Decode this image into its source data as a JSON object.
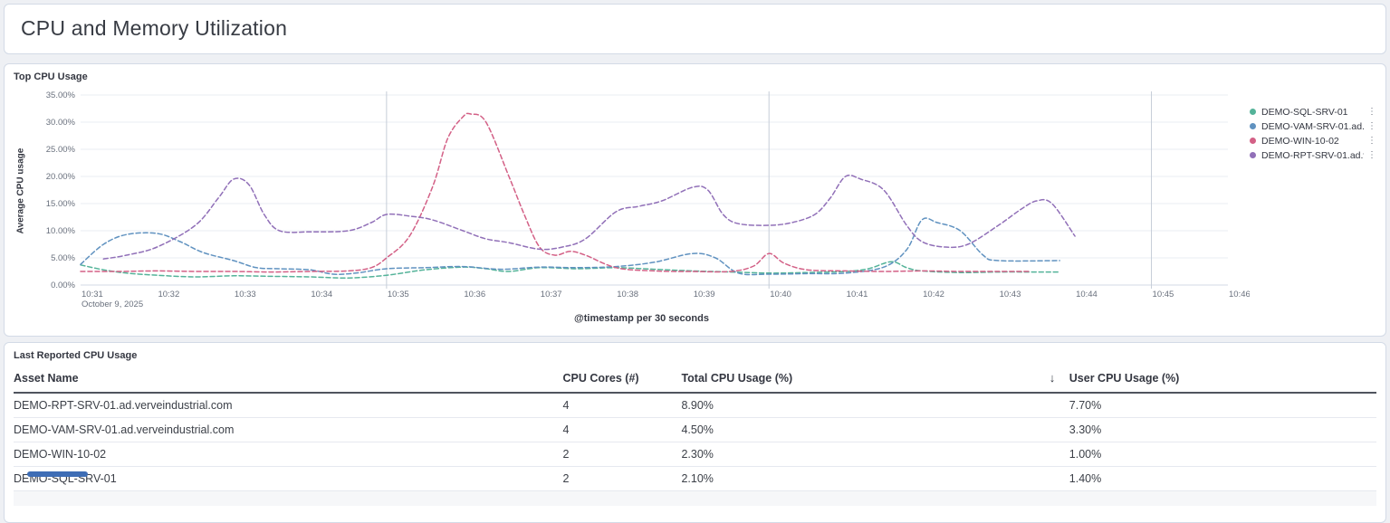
{
  "page": {
    "title": "CPU and Memory Utilization"
  },
  "colors": {
    "series_teal": "#54B399",
    "series_blue": "#6092C0",
    "series_pink": "#D36086",
    "series_purple": "#9170B8",
    "gridline": "#e9edf3",
    "vertical_gridline": "#c6cdd8",
    "axis_line": "#d3dae6",
    "tick_text": "#69707d",
    "scrollbar_thumb": "#3e6db5"
  },
  "chart_panel": {
    "title": "Top CPU Usage",
    "legend": [
      {
        "label": "DEMO-SQL-SRV-01",
        "color": "#54B399",
        "menu_icon": "kebab-menu"
      },
      {
        "label": "DEMO-VAM-SRV-01.ad...",
        "color": "#6092C0",
        "menu_icon": "kebab-menu"
      },
      {
        "label": "DEMO-WIN-10-02",
        "color": "#D36086",
        "menu_icon": "kebab-menu"
      },
      {
        "label": "DEMO-RPT-SRV-01.ad.v...",
        "color": "#9170B8",
        "menu_icon": "kebab-menu"
      }
    ]
  },
  "chart_data": {
    "type": "line",
    "title": "Top CPU Usage",
    "xlabel": "@timestamp per 30 seconds",
    "ylabel": "Average CPU usage",
    "x_ticks": [
      "10:31",
      "10:32",
      "10:33",
      "10:34",
      "10:35",
      "10:36",
      "10:37",
      "10:38",
      "10:39",
      "10:40",
      "10:41",
      "10:42",
      "10:43",
      "10:44",
      "10:45",
      "10:46"
    ],
    "x_date_label": "October 9, 2025",
    "y_ticks": [
      "0.00%",
      "5.00%",
      "10.00%",
      "15.00%",
      "20.00%",
      "25.00%",
      "30.00%",
      "35.00%"
    ],
    "ylim": [
      0,
      35
    ],
    "x_range_minutes": [
      0,
      15
    ],
    "vertical_gridlines_at_minutes": [
      4,
      9,
      14
    ],
    "grid": true,
    "legend_position": "right",
    "line_style": "dashed (dotted partial-data styling)",
    "series": [
      {
        "name": "DEMO-SQL-SRV-01",
        "color": "#54B399",
        "points": [
          [
            0,
            3.7
          ],
          [
            0.3,
            2.8
          ],
          [
            0.6,
            2.2
          ],
          [
            1,
            1.8
          ],
          [
            1.5,
            1.5
          ],
          [
            2,
            1.7
          ],
          [
            2.5,
            1.6
          ],
          [
            3,
            1.5
          ],
          [
            3.5,
            1.3
          ],
          [
            4,
            1.8
          ],
          [
            4.5,
            2.8
          ],
          [
            5,
            3.3
          ],
          [
            5.3,
            3.0
          ],
          [
            5.6,
            2.5
          ],
          [
            6,
            3.2
          ],
          [
            6.5,
            3.0
          ],
          [
            7,
            3.2
          ],
          [
            7.5,
            2.9
          ],
          [
            8,
            2.6
          ],
          [
            8.5,
            2.4
          ],
          [
            9,
            2.2
          ],
          [
            9.5,
            2.3
          ],
          [
            10,
            2.5
          ],
          [
            10.3,
            3.0
          ],
          [
            10.6,
            4.3
          ],
          [
            10.8,
            3.2
          ],
          [
            11,
            2.6
          ],
          [
            11.5,
            2.3
          ],
          [
            12,
            2.4
          ],
          [
            12.5,
            2.4
          ],
          [
            12.8,
            2.4
          ]
        ]
      },
      {
        "name": "DEMO-VAM-SRV-01.ad...",
        "color": "#6092C0",
        "points": [
          [
            0,
            3.8
          ],
          [
            0.3,
            7.5
          ],
          [
            0.6,
            9.3
          ],
          [
            1,
            9.5
          ],
          [
            1.3,
            8.0
          ],
          [
            1.6,
            6.0
          ],
          [
            2,
            4.5
          ],
          [
            2.3,
            3.2
          ],
          [
            2.6,
            3.0
          ],
          [
            3,
            2.8
          ],
          [
            3.3,
            2.0
          ],
          [
            3.6,
            2.2
          ],
          [
            4,
            3.0
          ],
          [
            4.5,
            3.2
          ],
          [
            5,
            3.4
          ],
          [
            5.5,
            2.9
          ],
          [
            6,
            3.3
          ],
          [
            6.5,
            3.2
          ],
          [
            7,
            3.4
          ],
          [
            7.5,
            4.2
          ],
          [
            8,
            5.8
          ],
          [
            8.3,
            5.0
          ],
          [
            8.6,
            2.2
          ],
          [
            9,
            2.0
          ],
          [
            9.5,
            2.1
          ],
          [
            10,
            2.2
          ],
          [
            10.5,
            3.3
          ],
          [
            10.8,
            6.5
          ],
          [
            11,
            12.0
          ],
          [
            11.2,
            11.5
          ],
          [
            11.5,
            10.0
          ],
          [
            11.8,
            5.5
          ],
          [
            12,
            4.5
          ],
          [
            12.8,
            4.5
          ]
        ]
      },
      {
        "name": "DEMO-WIN-10-02",
        "color": "#D36086",
        "points": [
          [
            0,
            2.5
          ],
          [
            0.5,
            2.5
          ],
          [
            1,
            2.6
          ],
          [
            1.5,
            2.5
          ],
          [
            2,
            2.5
          ],
          [
            2.5,
            2.4
          ],
          [
            3,
            2.5
          ],
          [
            3.5,
            2.6
          ],
          [
            3.8,
            3.2
          ],
          [
            4,
            5.0
          ],
          [
            4.3,
            9.0
          ],
          [
            4.6,
            18.0
          ],
          [
            4.8,
            27.0
          ],
          [
            5,
            31.0
          ],
          [
            5.1,
            31.5
          ],
          [
            5.3,
            30.0
          ],
          [
            5.6,
            20.0
          ],
          [
            5.8,
            13.0
          ],
          [
            6,
            7.0
          ],
          [
            6.2,
            5.5
          ],
          [
            6.4,
            6.2
          ],
          [
            6.6,
            5.5
          ],
          [
            7,
            3.2
          ],
          [
            7.5,
            2.6
          ],
          [
            8,
            2.5
          ],
          [
            8.5,
            2.5
          ],
          [
            8.8,
            3.5
          ],
          [
            9,
            5.8
          ],
          [
            9.2,
            4.0
          ],
          [
            9.5,
            2.8
          ],
          [
            10,
            2.6
          ],
          [
            10.5,
            2.5
          ],
          [
            11,
            2.6
          ],
          [
            11.5,
            2.5
          ],
          [
            12,
            2.5
          ],
          [
            12.4,
            2.5
          ]
        ]
      },
      {
        "name": "DEMO-RPT-SRV-01.ad.v...",
        "color": "#9170B8",
        "points": [
          [
            0.3,
            4.8
          ],
          [
            0.6,
            5.5
          ],
          [
            1,
            7.0
          ],
          [
            1.5,
            11.0
          ],
          [
            1.8,
            16.0
          ],
          [
            2,
            19.5
          ],
          [
            2.2,
            18.5
          ],
          [
            2.4,
            13.0
          ],
          [
            2.6,
            10.0
          ],
          [
            3,
            9.8
          ],
          [
            3.5,
            10.0
          ],
          [
            3.8,
            11.5
          ],
          [
            4,
            13.0
          ],
          [
            4.3,
            12.7
          ],
          [
            4.6,
            12.0
          ],
          [
            5,
            10.0
          ],
          [
            5.3,
            8.5
          ],
          [
            5.6,
            7.8
          ],
          [
            6,
            6.6
          ],
          [
            6.3,
            7.0
          ],
          [
            6.6,
            8.5
          ],
          [
            7,
            13.5
          ],
          [
            7.3,
            14.5
          ],
          [
            7.6,
            15.5
          ],
          [
            8,
            18.0
          ],
          [
            8.2,
            17.5
          ],
          [
            8.4,
            13.0
          ],
          [
            8.6,
            11.3
          ],
          [
            9,
            11.0
          ],
          [
            9.3,
            11.5
          ],
          [
            9.6,
            13.0
          ],
          [
            9.8,
            16.0
          ],
          [
            10,
            20.0
          ],
          [
            10.2,
            19.5
          ],
          [
            10.5,
            17.5
          ],
          [
            10.8,
            11.0
          ],
          [
            11,
            8.0
          ],
          [
            11.3,
            7.0
          ],
          [
            11.6,
            7.5
          ],
          [
            12,
            11.0
          ],
          [
            12.3,
            14.0
          ],
          [
            12.5,
            15.5
          ],
          [
            12.7,
            15.0
          ],
          [
            13,
            9.0
          ]
        ]
      }
    ]
  },
  "table_panel": {
    "title": "Last Reported CPU Usage",
    "columns": [
      "Asset Name",
      "CPU Cores (#)",
      "Total CPU Usage (%)",
      "User CPU Usage (%)"
    ],
    "sort_icon": "↓",
    "sort_icon_column_index": 3,
    "rows": [
      [
        "DEMO-RPT-SRV-01.ad.verveindustrial.com",
        "4",
        "8.90%",
        "7.70%"
      ],
      [
        "DEMO-VAM-SRV-01.ad.verveindustrial.com",
        "4",
        "4.50%",
        "3.30%"
      ],
      [
        "DEMO-WIN-10-02",
        "2",
        "2.30%",
        "1.00%"
      ],
      [
        "DEMO-SQL-SRV-01",
        "2",
        "2.10%",
        "1.40%"
      ]
    ]
  }
}
